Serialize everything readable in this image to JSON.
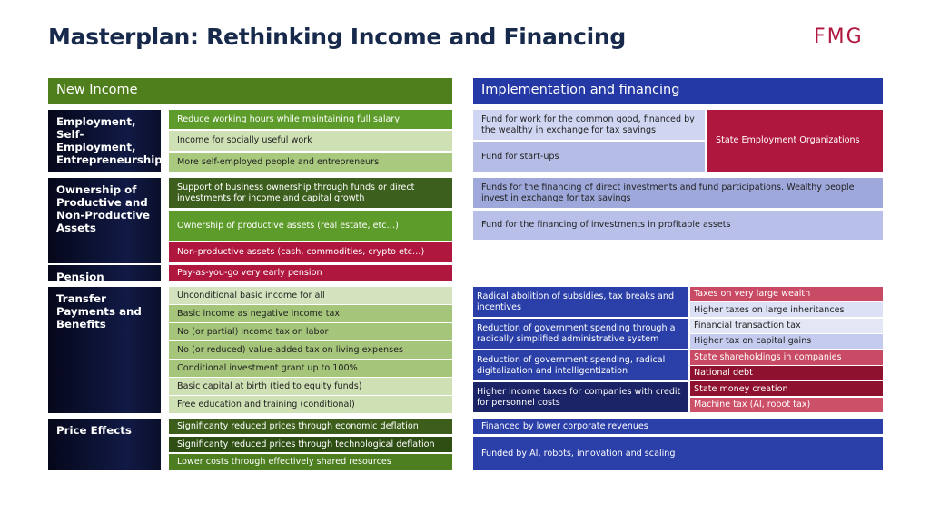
{
  "title": "Masterplan: Rethinking Income and Financing",
  "logo": "FMG",
  "colors": {
    "green": "#5a9a28",
    "dark_green": "#3c5e1a",
    "light_green": "#cfe0b4",
    "red": "#b0173f",
    "blue": "#2a3fa8",
    "navy": "#182a4c"
  },
  "left": {
    "header": "New Income",
    "groups": [
      {
        "label": "Employment, Self-Employment, Entrepreneurship",
        "items": [
          "Reduce working hours while maintaining full salary",
          "Income for socially useful work",
          "More self-employed people and entrepreneurs"
        ]
      },
      {
        "label": "Ownership of Productive and Non-Productive Assets",
        "items": [
          "Support of business ownership through funds or direct investments for income and capital growth",
          "Ownership of productive assets (real estate, etc…)",
          "Non-productive assets (cash, commodities, crypto etc…)"
        ]
      },
      {
        "label": "Pension",
        "items": [
          "Pay-as-you-go very early pension"
        ]
      },
      {
        "label": "Transfer Payments and Benefits",
        "items": [
          "Unconditional basic income for all",
          "Basic income as negative income tax",
          "No (or partial) income tax on labor",
          "No (or reduced) value-added tax on living expenses",
          "Conditional investment grant up to 100%",
          "Basic capital at birth (tied to equity funds)",
          "Free education and training (conditional)"
        ]
      },
      {
        "label": "Price Effects",
        "items": [
          "Significanty reduced prices through economic deflation",
          "Significanty reduced prices through technological deflation",
          "Lower costs through effectively shared resources"
        ]
      }
    ]
  },
  "right": {
    "header": "Implementation and financing",
    "employment": [
      "Fund for work for the common good, financed by the wealthy in exchange for tax savings",
      "Fund for start-ups"
    ],
    "state_employment": "State Employment Organizations",
    "ownership": [
      "Funds for the financing of direct investments and fund participations. Wealthy people invest in exchange for tax savings",
      "Fund for the financing of investments in profitable assets"
    ],
    "transfer_left": [
      "Radical abolition of subsidies, tax breaks and incentives",
      "Reduction of government spending through a radically simplified administrative system",
      "Reduction of government spending, radical digitalization and intelligentization",
      "Higher income taxes for companies with credit for personnel costs"
    ],
    "transfer_right": [
      "Taxes on very large wealth",
      "Higher taxes on large inheritances",
      "Financial transaction tax",
      "Higher tax on capital gains",
      "State shareholdings in companies",
      "National debt",
      "State money creation",
      "Machine tax (AI, robot tax)"
    ],
    "price": [
      "Financed by lower corporate revenues",
      "Funded by AI, robots, innovation and scaling"
    ]
  }
}
